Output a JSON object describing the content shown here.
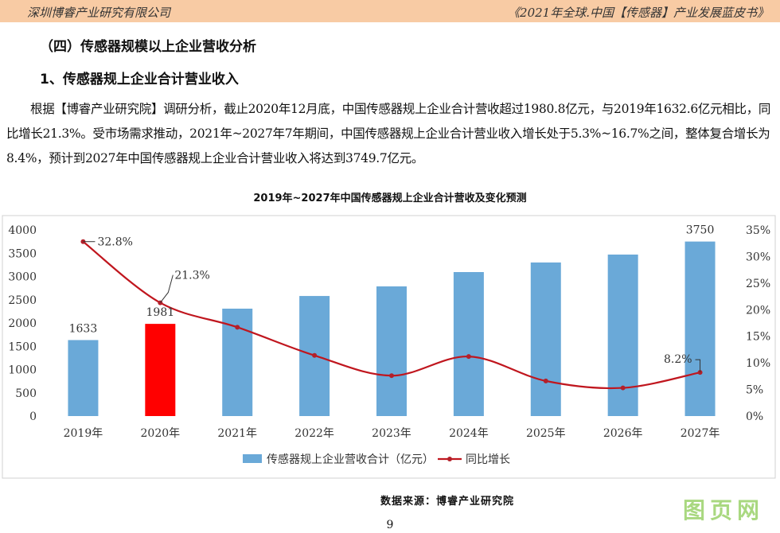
{
  "header": {
    "left": "深圳博睿产业研究有限公司",
    "right": "《2021年全球.中国【传感器】产业发展蓝皮书》"
  },
  "section_title": "（四）传感器规模以上企业营收分析",
  "subsection_title": "1、传感器规上企业合计营业收入",
  "paragraph": "根据【博睿产业研究院】调研分析，截止2020年12月底，中国传感器规上企业合计营收超过1980.8亿元，与2019年1632.6亿元相比，同比增长21.3%。受市场需求推动，2021年~2027年7年期间，中国传感器规上企业合计营业收入增长处于5.3%~16.7%之间，整体复合增长为8.4%，预计到2027年中国传感器规上企业合计营业收入将达到3749.7亿元。",
  "chart_data": {
    "type": "bar+line",
    "title": "2019年~2027年中国传感器规上企业合计营收及变化预测",
    "categories": [
      "2019年",
      "2020年",
      "2021年",
      "2022年",
      "2023年",
      "2024年",
      "2025年",
      "2026年",
      "2027年"
    ],
    "series": [
      {
        "name": "传感器规上企业营收合计（亿元）",
        "type": "bar",
        "axis": "left",
        "values": [
          1633,
          1981,
          2308,
          2580,
          2786,
          3094,
          3300,
          3470,
          3750
        ],
        "color": "#6aa9d8",
        "highlight_index": 1,
        "highlight_color": "#ff0000"
      },
      {
        "name": "同比增长",
        "type": "line",
        "axis": "right",
        "values": [
          32.8,
          21.3,
          16.7,
          11.4,
          7.6,
          11.2,
          6.6,
          5.3,
          8.2
        ],
        "color": "#c0161e"
      }
    ],
    "bar_labels": {
      "0": "1633",
      "1": "1981",
      "8": "3750"
    },
    "line_labels": {
      "0": "32.8%",
      "1": "21.3%",
      "8": "8.2%"
    },
    "left_axis": {
      "ylim": [
        0,
        4000
      ],
      "ticks": [
        "0",
        "500",
        "1000",
        "1500",
        "2000",
        "2500",
        "3000",
        "3500",
        "4000"
      ]
    },
    "right_axis": {
      "ylim": [
        0,
        35
      ],
      "ticks": [
        "0%",
        "5%",
        "10%",
        "15%",
        "20%",
        "25%",
        "30%",
        "35%"
      ]
    },
    "legend_position": "bottom"
  },
  "source": "数据来源：博睿产业研究院",
  "page_number": "9",
  "watermark": "图页网®"
}
